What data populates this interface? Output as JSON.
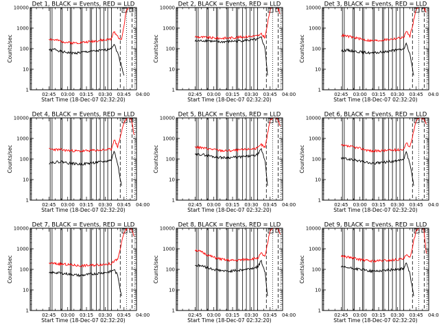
{
  "chart_data": [
    {
      "type": "line",
      "title": "Det 1, BLACK = Events, RED = LLD",
      "xlabel": "Start Time (18-Dec-07 02:32:20)",
      "ylabel": "Counts/sec",
      "yscale": "log",
      "ylim": [
        1,
        10000
      ],
      "x_tick_labels": [
        "02:45",
        "03:00",
        "03:15",
        "03:30",
        "03:45",
        "04:00"
      ],
      "series": [
        {
          "color": "#000000",
          "x_minutes": [
            0,
            2,
            5,
            10,
            15,
            20,
            25,
            30,
            35,
            40,
            45,
            50,
            52,
            55,
            58,
            60
          ],
          "values": [
            90,
            85,
            95,
            70,
            65,
            60,
            65,
            70,
            75,
            80,
            85,
            110,
            170,
            60,
            15,
            5
          ]
        },
        {
          "color": "#ff0000",
          "x_minutes": [
            0,
            2,
            5,
            10,
            15,
            20,
            25,
            30,
            35,
            40,
            45,
            50,
            52,
            55,
            58,
            62,
            65,
            68
          ],
          "values": [
            300,
            280,
            260,
            230,
            200,
            190,
            200,
            210,
            230,
            250,
            260,
            300,
            700,
            400,
            250,
            8000,
            12000,
            10000
          ]
        }
      ]
    },
    {
      "type": "line",
      "title": "Det 2, BLACK = Events, RED = LLD",
      "xlabel": "Start Time (18-Dec-07 02:32:20)",
      "ylabel": "Counts/sec",
      "yscale": "log",
      "ylim": [
        1,
        10000
      ],
      "x_tick_labels": [
        "02:45",
        "03:00",
        "03:15",
        "03:30",
        "03:45",
        "04:00"
      ],
      "series": [
        {
          "color": "#000000",
          "x_minutes": [
            0,
            5,
            10,
            15,
            20,
            25,
            30,
            35,
            40,
            45,
            50,
            53,
            56,
            58
          ],
          "values": [
            230,
            240,
            250,
            220,
            210,
            220,
            230,
            240,
            250,
            260,
            280,
            350,
            100,
            5
          ]
        },
        {
          "color": "#ff0000",
          "x_minutes": [
            0,
            5,
            10,
            15,
            20,
            25,
            30,
            35,
            40,
            45,
            50,
            53,
            56,
            60,
            63,
            66,
            68
          ],
          "values": [
            380,
            360,
            350,
            330,
            320,
            330,
            340,
            360,
            380,
            400,
            420,
            500,
            350,
            8000,
            12000,
            10000,
            5000
          ]
        }
      ]
    },
    {
      "type": "line",
      "title": "Det 3, BLACK = Events, RED = LLD",
      "xlabel": "Start Time (18-Dec-07 02:32:20)",
      "ylabel": "Counts/sec",
      "yscale": "log",
      "ylim": [
        1,
        10000
      ],
      "x_tick_labels": [
        "02:45",
        "03:00",
        "03:15",
        "03:30",
        "03:45",
        "04:00"
      ],
      "series": [
        {
          "color": "#000000",
          "x_minutes": [
            0,
            5,
            10,
            15,
            20,
            25,
            30,
            35,
            40,
            45,
            50,
            52,
            55,
            58
          ],
          "values": [
            80,
            85,
            75,
            70,
            65,
            60,
            65,
            70,
            80,
            85,
            95,
            180,
            50,
            5
          ]
        },
        {
          "color": "#ff0000",
          "x_minutes": [
            0,
            5,
            10,
            15,
            20,
            25,
            30,
            35,
            40,
            45,
            50,
            52,
            55,
            60,
            63,
            66,
            68
          ],
          "values": [
            450,
            400,
            350,
            300,
            260,
            240,
            250,
            270,
            290,
            320,
            350,
            700,
            400,
            8000,
            12000,
            10000,
            6000
          ]
        }
      ]
    },
    {
      "type": "line",
      "title": "Det 4, BLACK = Events, RED = LLD",
      "xlabel": "Start Time (18-Dec-07 02:32:20)",
      "ylabel": "Counts/sec",
      "yscale": "log",
      "ylim": [
        1,
        10000
      ],
      "x_tick_labels": [
        "02:45",
        "03:00",
        "03:15",
        "03:30",
        "03:45",
        "04:00"
      ],
      "series": [
        {
          "color": "#000000",
          "x_minutes": [
            0,
            5,
            10,
            15,
            20,
            25,
            30,
            35,
            40,
            45,
            50,
            52,
            55,
            58
          ],
          "values": [
            65,
            70,
            75,
            65,
            60,
            55,
            60,
            65,
            70,
            75,
            90,
            250,
            60,
            5
          ]
        },
        {
          "color": "#ff0000",
          "x_minutes": [
            0,
            5,
            10,
            15,
            20,
            25,
            30,
            35,
            40,
            45,
            50,
            52,
            55,
            60,
            63,
            66,
            68
          ],
          "values": [
            300,
            290,
            280,
            260,
            250,
            240,
            250,
            260,
            270,
            280,
            300,
            900,
            400,
            6000,
            11000,
            9000,
            1500
          ]
        }
      ]
    },
    {
      "type": "line",
      "title": "Det 5, BLACK = Events, RED = LLD",
      "xlabel": "Start Time (18-Dec-07 02:32:20)",
      "ylabel": "Counts/sec",
      "yscale": "log",
      "ylim": [
        1,
        10000
      ],
      "x_tick_labels": [
        "02:45",
        "03:00",
        "03:15",
        "03:30",
        "03:45",
        "04:00"
      ],
      "series": [
        {
          "color": "#000000",
          "x_minutes": [
            0,
            5,
            10,
            15,
            20,
            25,
            30,
            35,
            40,
            45,
            50,
            53,
            56,
            58
          ],
          "values": [
            160,
            170,
            150,
            130,
            120,
            115,
            120,
            125,
            130,
            140,
            160,
            300,
            80,
            5
          ]
        },
        {
          "color": "#ff0000",
          "x_minutes": [
            0,
            5,
            10,
            15,
            20,
            25,
            30,
            35,
            40,
            45,
            50,
            53,
            56,
            60,
            63,
            66,
            68
          ],
          "values": [
            380,
            350,
            320,
            290,
            260,
            250,
            260,
            270,
            290,
            310,
            330,
            500,
            350,
            8000,
            12000,
            9000,
            4000
          ]
        }
      ]
    },
    {
      "type": "line",
      "title": "Det 6, BLACK = Events, RED = LLD",
      "xlabel": "Start Time (18-Dec-07 02:32:20)",
      "ylabel": "Counts/sec",
      "yscale": "log",
      "ylim": [
        1,
        10000
      ],
      "x_tick_labels": [
        "02:45",
        "03:00",
        "03:15",
        "03:30",
        "03:45",
        "04:00"
      ],
      "series": [
        {
          "color": "#000000",
          "x_minutes": [
            0,
            5,
            10,
            15,
            20,
            25,
            30,
            35,
            40,
            45,
            50,
            52,
            55,
            58
          ],
          "values": [
            110,
            100,
            90,
            80,
            70,
            60,
            65,
            70,
            75,
            80,
            90,
            220,
            60,
            5
          ]
        },
        {
          "color": "#ff0000",
          "x_minutes": [
            0,
            5,
            10,
            15,
            20,
            25,
            30,
            35,
            40,
            45,
            50,
            52,
            55,
            60,
            63,
            66,
            68
          ],
          "values": [
            450,
            420,
            380,
            330,
            280,
            240,
            250,
            260,
            270,
            280,
            300,
            600,
            400,
            7000,
            11000,
            9000,
            5000
          ]
        }
      ]
    },
    {
      "type": "line",
      "title": "Det 7, BLACK = Events, RED = LLD",
      "xlabel": "Start Time (18-Dec-07 02:32:20)",
      "ylabel": "Counts/sec",
      "yscale": "log",
      "ylim": [
        1,
        10000
      ],
      "x_tick_labels": [
        "02:45",
        "03:00",
        "03:15",
        "03:30",
        "03:45",
        "04:00"
      ],
      "series": [
        {
          "color": "#000000",
          "x_minutes": [
            0,
            5,
            10,
            15,
            20,
            25,
            30,
            35,
            40,
            45,
            50,
            52,
            55,
            58
          ],
          "values": [
            65,
            70,
            65,
            60,
            55,
            50,
            55,
            60,
            65,
            70,
            80,
            100,
            50,
            5
          ]
        },
        {
          "color": "#ff0000",
          "x_minutes": [
            0,
            5,
            10,
            15,
            20,
            25,
            30,
            35,
            40,
            45,
            50,
            52,
            55,
            60,
            63,
            66,
            68
          ],
          "values": [
            200,
            190,
            180,
            170,
            160,
            150,
            155,
            160,
            170,
            180,
            190,
            250,
            300,
            6000,
            11000,
            9000,
            4000
          ]
        }
      ]
    },
    {
      "type": "line",
      "title": "Det 8, BLACK = Events, RED = LLD",
      "xlabel": "Start Time (18-Dec-07 02:32:20)",
      "ylabel": "Counts/sec",
      "yscale": "log",
      "ylim": [
        1,
        10000
      ],
      "x_tick_labels": [
        "02:45",
        "03:00",
        "03:15",
        "03:30",
        "03:45",
        "04:00"
      ],
      "series": [
        {
          "color": "#000000",
          "x_minutes": [
            0,
            5,
            10,
            15,
            20,
            25,
            30,
            35,
            40,
            45,
            50,
            53,
            56,
            58
          ],
          "values": [
            160,
            150,
            120,
            100,
            90,
            80,
            85,
            90,
            100,
            110,
            130,
            260,
            70,
            5
          ]
        },
        {
          "color": "#ff0000",
          "x_minutes": [
            0,
            5,
            10,
            15,
            20,
            25,
            30,
            35,
            40,
            45,
            50,
            53,
            56,
            60,
            63,
            66,
            68
          ],
          "values": [
            900,
            700,
            500,
            380,
            320,
            280,
            270,
            280,
            300,
            320,
            350,
            600,
            400,
            8000,
            12000,
            10000,
            5000
          ]
        }
      ]
    },
    {
      "type": "line",
      "title": "Det 9, BLACK = Events, RED = LLD",
      "xlabel": "Start Time (18-Dec-07 02:32:20)",
      "ylabel": "Counts/sec",
      "yscale": "log",
      "ylim": [
        1,
        10000
      ],
      "x_tick_labels": [
        "02:45",
        "03:00",
        "03:15",
        "03:30",
        "03:45",
        "04:00"
      ],
      "series": [
        {
          "color": "#000000",
          "x_minutes": [
            0,
            5,
            10,
            15,
            20,
            25,
            30,
            35,
            40,
            45,
            50,
            52,
            55,
            58
          ],
          "values": [
            130,
            120,
            110,
            100,
            90,
            80,
            85,
            90,
            95,
            100,
            110,
            200,
            60,
            5
          ]
        },
        {
          "color": "#ff0000",
          "x_minutes": [
            0,
            5,
            10,
            15,
            20,
            25,
            30,
            35,
            40,
            45,
            50,
            52,
            55,
            60,
            63,
            66,
            68
          ],
          "values": [
            450,
            400,
            350,
            300,
            270,
            250,
            260,
            270,
            280,
            300,
            320,
            500,
            350,
            8000,
            12000,
            10000,
            600
          ]
        }
      ]
    }
  ]
}
